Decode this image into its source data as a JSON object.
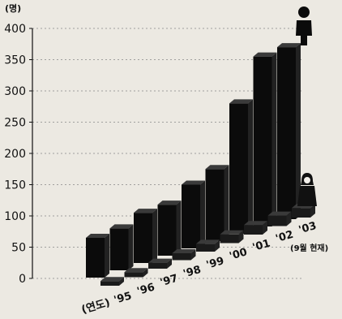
{
  "chart_data": {
    "type": "bar",
    "ylabel": "(명)",
    "ylim": [
      0,
      400
    ],
    "yticks": [
      "0",
      "50",
      "100",
      "150",
      "200",
      "250",
      "300",
      "350",
      "400"
    ],
    "x_axis_name": "(연도)",
    "categories": [
      "'95",
      "'96",
      "'97",
      "'98",
      "'99",
      "'00",
      "'01",
      "'02",
      "'03"
    ],
    "x_note": "(9월 현재)",
    "grid": true,
    "legend": [
      "male-figure-icon",
      "female-figure-icon"
    ],
    "series": [
      {
        "icon": "male-figure-icon",
        "color": "#0b0b0b",
        "values": [
          65,
          80,
          105,
          118,
          150,
          175,
          280,
          355,
          370
        ]
      },
      {
        "icon": "female-figure-icon",
        "color": "#1a1a1a",
        "values": [
          5,
          6,
          8,
          10,
          12,
          14,
          16,
          18,
          16
        ]
      }
    ]
  }
}
